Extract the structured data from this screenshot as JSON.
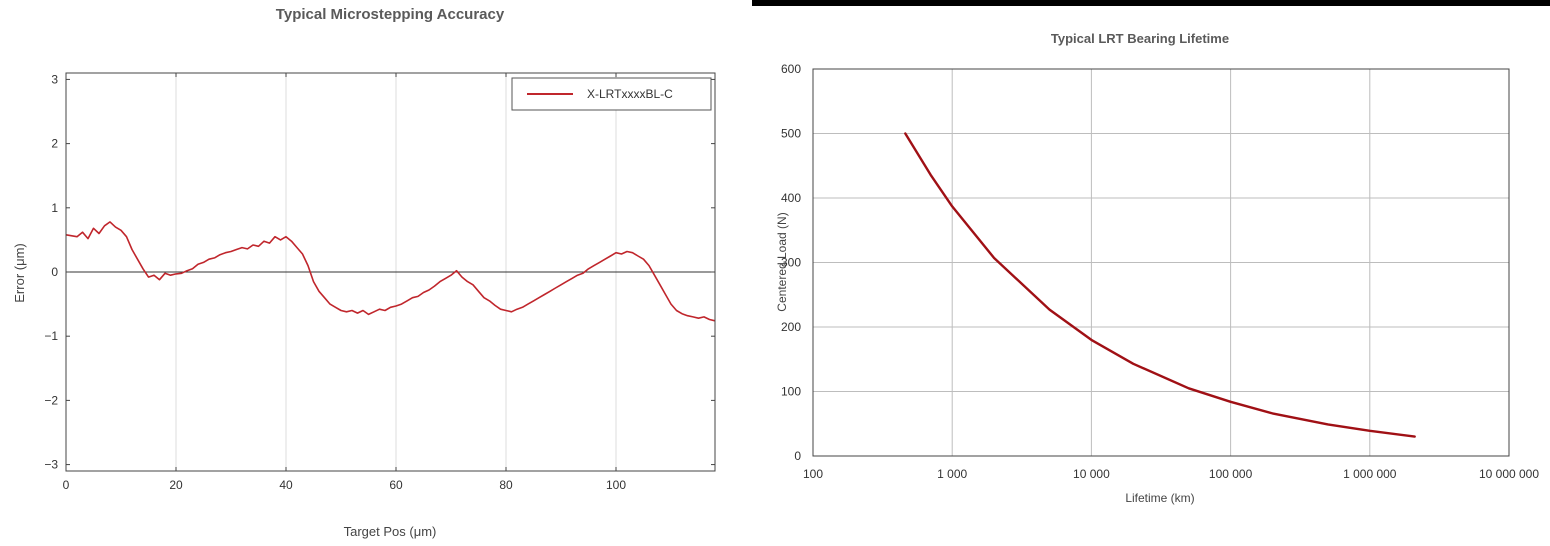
{
  "colors": {
    "series": "#c0262c",
    "series2": "#a01015",
    "divider": "#000000"
  },
  "chart_data": [
    {
      "type": "line",
      "title": "Typical Microstepping Accuracy",
      "xlabel": "Target Pos (μm)",
      "ylabel": "Error (μm)",
      "xlim": [
        0,
        118
      ],
      "ylim": [
        -3.1,
        3.1
      ],
      "x_ticks": [
        0,
        20,
        40,
        60,
        80,
        100
      ],
      "x_tick_labels": [
        "0",
        "20",
        "40",
        "60",
        "80",
        "100"
      ],
      "y_ticks": [
        3,
        2,
        1,
        0,
        -1,
        -2,
        -3
      ],
      "y_tick_labels": [
        "3",
        "2",
        "1",
        "0",
        "−1",
        "−2",
        "−3"
      ],
      "grid": true,
      "zero_line": true,
      "legend": "top-right",
      "series": [
        {
          "name": "X-LRTxxxxBL-C",
          "x": [
            0,
            2,
            3,
            4,
            5,
            6,
            7,
            8,
            9,
            10,
            11,
            12,
            13,
            14,
            15,
            16,
            17,
            18,
            19,
            20,
            21,
            22,
            23,
            24,
            25,
            26,
            27,
            28,
            29,
            30,
            31,
            32,
            33,
            34,
            35,
            36,
            37,
            38,
            39,
            40,
            41,
            42,
            43,
            44,
            45,
            46,
            47,
            48,
            49,
            50,
            51,
            52,
            53,
            54,
            55,
            56,
            57,
            58,
            59,
            60,
            61,
            62,
            63,
            64,
            65,
            66,
            67,
            68,
            69,
            70,
            71,
            72,
            73,
            74,
            75,
            76,
            77,
            78,
            79,
            80,
            81,
            82,
            83,
            84,
            85,
            86,
            87,
            88,
            89,
            90,
            91,
            92,
            93,
            94,
            95,
            96,
            97,
            98,
            99,
            100,
            101,
            102,
            103,
            104,
            105,
            106,
            107,
            108,
            109,
            110,
            111,
            112,
            113,
            114,
            115,
            116,
            117,
            118
          ],
          "y": [
            0.58,
            0.55,
            0.62,
            0.52,
            0.68,
            0.6,
            0.72,
            0.78,
            0.7,
            0.65,
            0.55,
            0.35,
            0.2,
            0.05,
            -0.08,
            -0.05,
            -0.12,
            -0.02,
            -0.05,
            -0.03,
            -0.02,
            0.02,
            0.05,
            0.12,
            0.15,
            0.2,
            0.22,
            0.27,
            0.3,
            0.32,
            0.35,
            0.38,
            0.36,
            0.42,
            0.4,
            0.48,
            0.45,
            0.55,
            0.5,
            0.55,
            0.48,
            0.38,
            0.28,
            0.1,
            -0.15,
            -0.3,
            -0.4,
            -0.5,
            -0.55,
            -0.6,
            -0.62,
            -0.6,
            -0.64,
            -0.6,
            -0.66,
            -0.62,
            -0.58,
            -0.6,
            -0.55,
            -0.53,
            -0.5,
            -0.45,
            -0.4,
            -0.38,
            -0.32,
            -0.28,
            -0.22,
            -0.15,
            -0.1,
            -0.05,
            0.02,
            -0.08,
            -0.15,
            -0.2,
            -0.3,
            -0.4,
            -0.45,
            -0.52,
            -0.58,
            -0.6,
            -0.62,
            -0.58,
            -0.55,
            -0.5,
            -0.45,
            -0.4,
            -0.35,
            -0.3,
            -0.25,
            -0.2,
            -0.15,
            -0.1,
            -0.05,
            -0.02,
            0.05,
            0.1,
            0.15,
            0.2,
            0.25,
            0.3,
            0.28,
            0.32,
            0.3,
            0.25,
            0.2,
            0.1,
            -0.05,
            -0.2,
            -0.35,
            -0.5,
            -0.6,
            -0.65,
            -0.68,
            -0.7,
            -0.72,
            -0.7,
            -0.74,
            -0.76
          ]
        }
      ]
    },
    {
      "type": "line",
      "title": "Typical LRT Bearing Lifetime",
      "xlabel": "Lifetime (km)",
      "ylabel": "Centered Load (N)",
      "x_scale": "log",
      "xlim": [
        100,
        10000000
      ],
      "ylim": [
        0,
        600
      ],
      "x_ticks": [
        100,
        1000,
        10000,
        100000,
        1000000,
        10000000
      ],
      "x_tick_labels": [
        "100",
        "1 000",
        "10 000",
        "100 000",
        "1 000 000",
        "10 000 000"
      ],
      "y_ticks": [
        0,
        100,
        200,
        300,
        400,
        500,
        600
      ],
      "y_tick_labels": [
        "0",
        "100",
        "200",
        "300",
        "400",
        "500",
        "600"
      ],
      "grid": true,
      "series": [
        {
          "x": [
            460,
            700,
            1000,
            2000,
            5000,
            10000,
            20000,
            50000,
            100000,
            200000,
            500000,
            1000000,
            2100000
          ],
          "y": [
            500,
            436,
            387,
            307,
            227,
            180,
            143,
            105,
            84,
            66,
            49,
            39,
            30
          ]
        }
      ]
    }
  ]
}
